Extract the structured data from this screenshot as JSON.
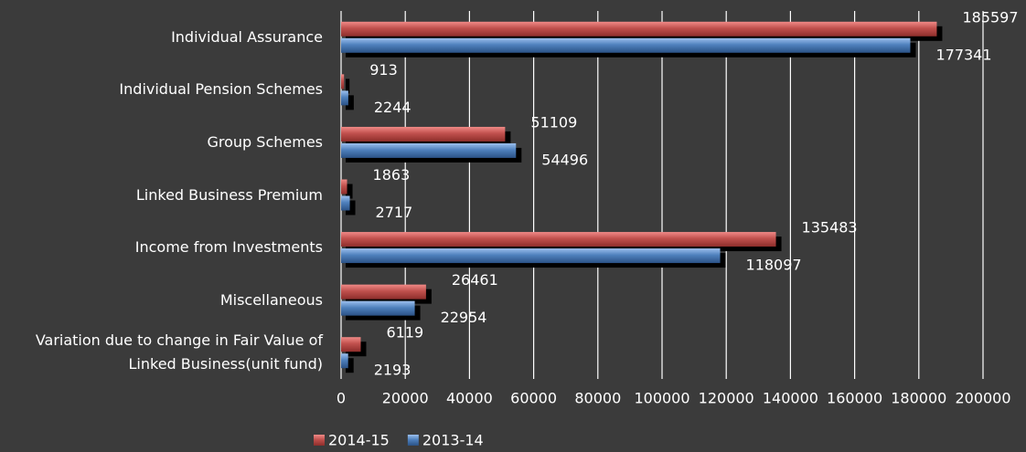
{
  "chart_data": {
    "type": "bar",
    "orientation": "horizontal",
    "categories": [
      "Individual Assurance",
      "Individual Pension Schemes",
      "Group Schemes",
      "Linked Business Premium",
      "Income from Investments",
      "Miscellaneous",
      "Variation due to change in Fair Value of Linked Business(unit fund)"
    ],
    "series": [
      {
        "name": "2014-15",
        "color": "#c0504d",
        "values": [
          185597,
          913,
          51109,
          1863,
          135483,
          26461,
          6119
        ]
      },
      {
        "name": "2013-14",
        "color": "#4f81bd",
        "values": [
          177341,
          2244,
          54496,
          2717,
          118097,
          22954,
          2193
        ]
      }
    ],
    "xlim": [
      0,
      200000
    ],
    "xticks": [
      0,
      20000,
      40000,
      60000,
      80000,
      100000,
      120000,
      140000,
      160000,
      180000,
      200000
    ],
    "grid": true,
    "legend": "bottom"
  }
}
